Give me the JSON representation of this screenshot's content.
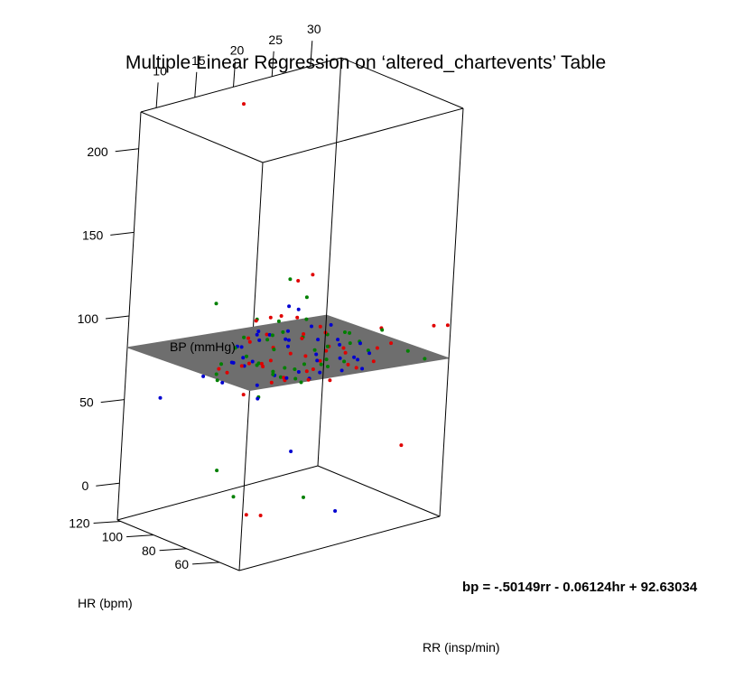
{
  "chart_data": {
    "type": "scatter",
    "title": "Multiple Linear Regression on ‘altered_chartevents’ Table",
    "xlabel": "RR (insp/min)",
    "ylabel": "HR (bpm)",
    "zlabel": "BP (mmHg)",
    "x_ticks": [
      "10",
      "15",
      "20",
      "25",
      "30"
    ],
    "y_ticks": [
      "120",
      "100",
      "80",
      "60"
    ],
    "z_ticks": [
      "200",
      "150",
      "100",
      "50",
      "0"
    ],
    "equation": "bp = -.50149rr - 0.06124hr + 92.63034",
    "point_colors": {
      "a": "#e00000",
      "b": "#0000d0",
      "c": "#008000"
    },
    "plane_color": "#6e6e6e",
    "frame_color": "#000000",
    "points": [
      {
        "x": 21.5,
        "y": 122,
        "z": 210,
        "c": "a"
      },
      {
        "x": 20.5,
        "y": 84,
        "z": 122,
        "c": "c"
      },
      {
        "x": 18.5,
        "y": 118,
        "z": 96,
        "c": "c"
      },
      {
        "x": 21.0,
        "y": 72,
        "z": 98,
        "c": "b"
      },
      {
        "x": 15.5,
        "y": 88,
        "z": 86,
        "c": "b"
      },
      {
        "x": 10.5,
        "y": 112,
        "z": 52,
        "c": "b"
      },
      {
        "x": 34.5,
        "y": 52,
        "z": 90,
        "c": "a"
      },
      {
        "x": 34.0,
        "y": 58,
        "z": 88,
        "c": "a"
      },
      {
        "x": 32.0,
        "y": 80,
        "z": 80,
        "c": "a"
      },
      {
        "x": 30.5,
        "y": 75,
        "z": 72,
        "c": "a"
      },
      {
        "x": 30.0,
        "y": 78,
        "z": 70,
        "c": "c"
      },
      {
        "x": 31.0,
        "y": 88,
        "z": 70,
        "c": "c"
      },
      {
        "x": 33.0,
        "y": 68,
        "z": 70,
        "c": "c"
      },
      {
        "x": 33.5,
        "y": 60,
        "z": 68,
        "c": "c"
      },
      {
        "x": 29.0,
        "y": 92,
        "z": 72,
        "c": "b"
      },
      {
        "x": 29.5,
        "y": 84,
        "z": 64,
        "c": "b"
      },
      {
        "x": 28.5,
        "y": 96,
        "z": 74,
        "c": "c"
      },
      {
        "x": 27.0,
        "y": 100,
        "z": 110,
        "c": "a"
      },
      {
        "x": 26.0,
        "y": 104,
        "z": 106,
        "c": "a"
      },
      {
        "x": 25.5,
        "y": 96,
        "z": 100,
        "c": "c"
      },
      {
        "x": 25.0,
        "y": 104,
        "z": 92,
        "c": "b"
      },
      {
        "x": 24.5,
        "y": 106,
        "z": 86,
        "c": "a"
      },
      {
        "x": 24.0,
        "y": 110,
        "z": 84,
        "c": "a"
      },
      {
        "x": 23.5,
        "y": 100,
        "z": 80,
        "c": "c"
      },
      {
        "x": 23.0,
        "y": 96,
        "z": 78,
        "c": "b"
      },
      {
        "x": 22.5,
        "y": 92,
        "z": 76,
        "c": "b"
      },
      {
        "x": 22.0,
        "y": 88,
        "z": 74,
        "c": "a"
      },
      {
        "x": 21.5,
        "y": 100,
        "z": 78,
        "c": "c"
      },
      {
        "x": 21.0,
        "y": 104,
        "z": 80,
        "c": "b"
      },
      {
        "x": 20.5,
        "y": 96,
        "z": 84,
        "c": "a"
      },
      {
        "x": 20.0,
        "y": 92,
        "z": 86,
        "c": "b"
      },
      {
        "x": 19.5,
        "y": 88,
        "z": 88,
        "c": "c"
      },
      {
        "x": 19.0,
        "y": 100,
        "z": 82,
        "c": "a"
      },
      {
        "x": 18.5,
        "y": 104,
        "z": 76,
        "c": "b"
      },
      {
        "x": 18.0,
        "y": 96,
        "z": 74,
        "c": "c"
      },
      {
        "x": 17.5,
        "y": 92,
        "z": 72,
        "c": "a"
      },
      {
        "x": 17.0,
        "y": 100,
        "z": 70,
        "c": "b"
      },
      {
        "x": 16.5,
        "y": 104,
        "z": 68,
        "c": "c"
      },
      {
        "x": 16.0,
        "y": 98,
        "z": 66,
        "c": "a"
      },
      {
        "x": 15.5,
        "y": 102,
        "z": 64,
        "c": "c"
      },
      {
        "x": 15.0,
        "y": 96,
        "z": 62,
        "c": "b"
      },
      {
        "x": 24.0,
        "y": 88,
        "z": 70,
        "c": "a"
      },
      {
        "x": 24.5,
        "y": 84,
        "z": 72,
        "c": "b"
      },
      {
        "x": 25.0,
        "y": 80,
        "z": 70,
        "c": "c"
      },
      {
        "x": 25.5,
        "y": 86,
        "z": 66,
        "c": "a"
      },
      {
        "x": 26.0,
        "y": 90,
        "z": 64,
        "c": "b"
      },
      {
        "x": 26.5,
        "y": 94,
        "z": 68,
        "c": "c"
      },
      {
        "x": 27.0,
        "y": 88,
        "z": 72,
        "c": "a"
      },
      {
        "x": 27.5,
        "y": 84,
        "z": 74,
        "c": "b"
      },
      {
        "x": 28.0,
        "y": 80,
        "z": 76,
        "c": "c"
      },
      {
        "x": 28.5,
        "y": 86,
        "z": 70,
        "c": "a"
      },
      {
        "x": 23.0,
        "y": 84,
        "z": 68,
        "c": "c"
      },
      {
        "x": 22.5,
        "y": 80,
        "z": 66,
        "c": "a"
      },
      {
        "x": 22.0,
        "y": 76,
        "z": 64,
        "c": "b"
      },
      {
        "x": 21.5,
        "y": 82,
        "z": 62,
        "c": "c"
      },
      {
        "x": 21.0,
        "y": 86,
        "z": 60,
        "c": "a"
      },
      {
        "x": 20.5,
        "y": 90,
        "z": 62,
        "c": "b"
      },
      {
        "x": 20.0,
        "y": 84,
        "z": 64,
        "c": "c"
      },
      {
        "x": 19.5,
        "y": 80,
        "z": 66,
        "c": "a"
      },
      {
        "x": 19.0,
        "y": 76,
        "z": 68,
        "c": "b"
      },
      {
        "x": 18.5,
        "y": 82,
        "z": 70,
        "c": "c"
      },
      {
        "x": 18.0,
        "y": 86,
        "z": 72,
        "c": "a"
      },
      {
        "x": 17.5,
        "y": 90,
        "z": 74,
        "c": "b"
      },
      {
        "x": 17.0,
        "y": 84,
        "z": 76,
        "c": "c"
      },
      {
        "x": 16.5,
        "y": 80,
        "z": 78,
        "c": "a"
      },
      {
        "x": 16.0,
        "y": 88,
        "z": 74,
        "c": "b"
      },
      {
        "x": 22.0,
        "y": 96,
        "z": 90,
        "c": "c"
      },
      {
        "x": 23.5,
        "y": 92,
        "z": 92,
        "c": "a"
      },
      {
        "x": 24.5,
        "y": 96,
        "z": 94,
        "c": "b"
      },
      {
        "x": 26.5,
        "y": 100,
        "z": 84,
        "c": "c"
      },
      {
        "x": 27.5,
        "y": 96,
        "z": 80,
        "c": "a"
      },
      {
        "x": 28.0,
        "y": 92,
        "z": 82,
        "c": "b"
      },
      {
        "x": 29.0,
        "y": 88,
        "z": 78,
        "c": "c"
      },
      {
        "x": 21.0,
        "y": 108,
        "z": 74,
        "c": "a"
      },
      {
        "x": 20.0,
        "y": 112,
        "z": 70,
        "c": "c"
      },
      {
        "x": 19.0,
        "y": 108,
        "z": 64,
        "c": "b"
      },
      {
        "x": 18.0,
        "y": 112,
        "z": 60,
        "c": "a"
      },
      {
        "x": 17.0,
        "y": 108,
        "z": 56,
        "c": "c"
      },
      {
        "x": 16.0,
        "y": 112,
        "z": 58,
        "c": "b"
      },
      {
        "x": 23.0,
        "y": 104,
        "z": 62,
        "c": "a"
      },
      {
        "x": 24.0,
        "y": 100,
        "z": 58,
        "c": "c"
      },
      {
        "x": 25.0,
        "y": 96,
        "z": 56,
        "c": "b"
      },
      {
        "x": 26.0,
        "y": 92,
        "z": 58,
        "c": "a"
      },
      {
        "x": 27.0,
        "y": 88,
        "z": 60,
        "c": "c"
      },
      {
        "x": 28.0,
        "y": 84,
        "z": 58,
        "c": "b"
      },
      {
        "x": 29.0,
        "y": 80,
        "z": 60,
        "c": "a"
      },
      {
        "x": 30.0,
        "y": 84,
        "z": 62,
        "c": "b"
      },
      {
        "x": 22.5,
        "y": 100,
        "z": 56,
        "c": "c"
      },
      {
        "x": 21.5,
        "y": 96,
        "z": 54,
        "c": "a"
      },
      {
        "x": 20.5,
        "y": 100,
        "z": 52,
        "c": "b"
      },
      {
        "x": 24.5,
        "y": 92,
        "z": 52,
        "c": "c"
      },
      {
        "x": 26.5,
        "y": 84,
        "z": 54,
        "c": "a"
      },
      {
        "x": 25.5,
        "y": 88,
        "z": 78,
        "c": "b"
      },
      {
        "x": 23.5,
        "y": 88,
        "z": 82,
        "c": "c"
      },
      {
        "x": 22.5,
        "y": 84,
        "z": 84,
        "c": "a"
      },
      {
        "x": 21.5,
        "y": 88,
        "z": 88,
        "c": "b"
      },
      {
        "x": 20.0,
        "y": 100,
        "z": 92,
        "c": "c"
      },
      {
        "x": 19.0,
        "y": 96,
        "z": 94,
        "c": "a"
      },
      {
        "x": 18.5,
        "y": 92,
        "z": 90,
        "c": "b"
      },
      {
        "x": 17.5,
        "y": 96,
        "z": 86,
        "c": "c"
      },
      {
        "x": 27.0,
        "y": 76,
        "z": 66,
        "c": "a"
      },
      {
        "x": 28.0,
        "y": 72,
        "z": 64,
        "c": "b"
      },
      {
        "x": 29.0,
        "y": 70,
        "z": 68,
        "c": "a"
      },
      {
        "x": 26.0,
        "y": 74,
        "z": 70,
        "c": "c"
      },
      {
        "x": 25.0,
        "y": 72,
        "z": 74,
        "c": "b"
      },
      {
        "x": 24.0,
        "y": 76,
        "z": 78,
        "c": "a"
      },
      {
        "x": 23.0,
        "y": 74,
        "z": 72,
        "c": "c"
      },
      {
        "x": 22.0,
        "y": 70,
        "z": 70,
        "c": "b"
      },
      {
        "x": 21.0,
        "y": 72,
        "z": 66,
        "c": "a"
      },
      {
        "x": 20.0,
        "y": 76,
        "z": 72,
        "c": "c"
      },
      {
        "x": 24.0,
        "y": 116,
        "z": 68,
        "c": "b"
      },
      {
        "x": 25.0,
        "y": 112,
        "z": 64,
        "c": "a"
      },
      {
        "x": 26.0,
        "y": 116,
        "z": 60,
        "c": "c"
      },
      {
        "x": 27.0,
        "y": 112,
        "z": 66,
        "c": "b"
      },
      {
        "x": 28.0,
        "y": 108,
        "z": 70,
        "c": "a"
      },
      {
        "x": 23.0,
        "y": 112,
        "z": 56,
        "c": "c"
      },
      {
        "x": 22.0,
        "y": 116,
        "z": 60,
        "c": "b"
      },
      {
        "x": 21.0,
        "y": 112,
        "z": 58,
        "c": "a"
      },
      {
        "x": 19.0,
        "y": 92,
        "z": 50,
        "c": "c"
      },
      {
        "x": 18.0,
        "y": 88,
        "z": 52,
        "c": "b"
      },
      {
        "x": 17.0,
        "y": 92,
        "z": 54,
        "c": "a"
      },
      {
        "x": 30.5,
        "y": 92,
        "z": 74,
        "c": "c"
      },
      {
        "x": 31.5,
        "y": 84,
        "z": 64,
        "c": "b"
      },
      {
        "x": 32.5,
        "y": 76,
        "z": 72,
        "c": "a"
      },
      {
        "x": 32.0,
        "y": 92,
        "z": 66,
        "c": "b"
      },
      {
        "x": 31.0,
        "y": 96,
        "z": 60,
        "c": "a"
      },
      {
        "x": 29.5,
        "y": 100,
        "z": 64,
        "c": "c"
      },
      {
        "x": 30.0,
        "y": 104,
        "z": 70,
        "c": "a"
      },
      {
        "x": 33.0,
        "y": 84,
        "z": 76,
        "c": "c"
      },
      {
        "x": 21.0,
        "y": 80,
        "z": 20,
        "c": "b"
      },
      {
        "x": 14.5,
        "y": 94,
        "z": 11,
        "c": "c"
      },
      {
        "x": 31.5,
        "y": 62,
        "z": 18,
        "c": "a"
      },
      {
        "x": 16.0,
        "y": 90,
        "z": -5,
        "c": "c"
      },
      {
        "x": 16.5,
        "y": 84,
        "z": -14,
        "c": "a"
      },
      {
        "x": 17.5,
        "y": 80,
        "z": -14,
        "c": "a"
      },
      {
        "x": 23.0,
        "y": 80,
        "z": -10,
        "c": "c"
      },
      {
        "x": 25.5,
        "y": 72,
        "z": -18,
        "c": "b"
      }
    ]
  }
}
